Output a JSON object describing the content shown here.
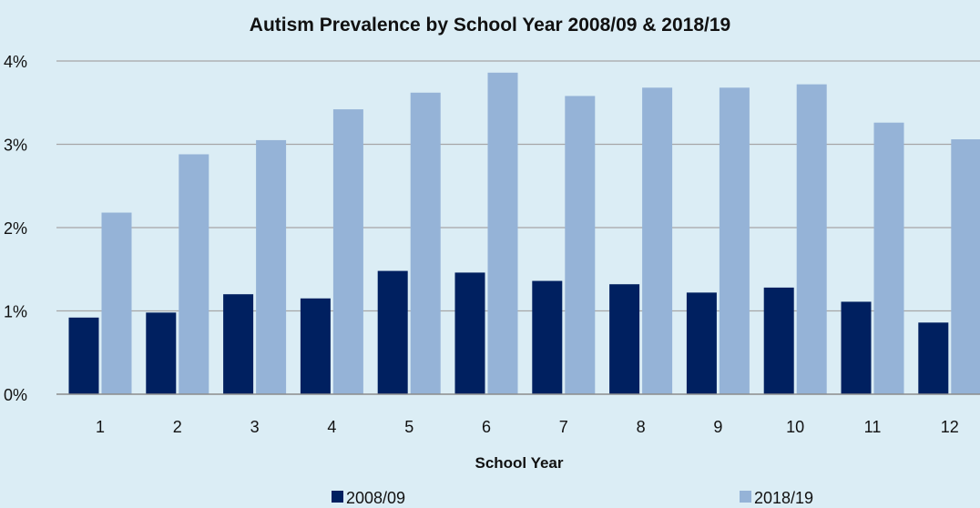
{
  "chart_data": {
    "type": "bar",
    "title": "Autism Prevalence by School Year 2008/09 & 2018/19",
    "xlabel": "School Year",
    "ylabel": "",
    "categories": [
      "1",
      "2",
      "3",
      "4",
      "5",
      "6",
      "7",
      "8",
      "9",
      "10",
      "11",
      "12"
    ],
    "series": [
      {
        "name": "2008/09",
        "color": "#002060",
        "values": [
          0.92,
          0.98,
          1.2,
          1.15,
          1.48,
          1.46,
          1.36,
          1.32,
          1.22,
          1.28,
          1.11,
          0.86
        ]
      },
      {
        "name": "2018/19",
        "color": "#95b3d7",
        "values": [
          2.18,
          2.88,
          3.05,
          3.42,
          3.62,
          3.86,
          3.58,
          3.68,
          3.68,
          3.72,
          3.26,
          3.06
        ]
      }
    ],
    "ylim": [
      0,
      4
    ],
    "yticks": [
      "0%",
      "1%",
      "2%",
      "3%",
      "4%"
    ],
    "grid": true,
    "legend_position": "bottom"
  }
}
